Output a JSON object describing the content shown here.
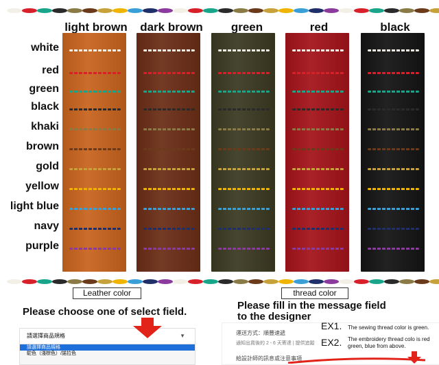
{
  "leather_colors": [
    {
      "name": "light brown",
      "color": "#c8641e"
    },
    {
      "name": "dark brown",
      "color": "#6b2e17"
    },
    {
      "name": "green",
      "color": "#3b3a22"
    },
    {
      "name": "red",
      "color": "#a3141a"
    },
    {
      "name": "black",
      "color": "#141414"
    }
  ],
  "thread_colors": [
    {
      "name": "white",
      "color": "#f2efe6"
    },
    {
      "name": "red",
      "color": "#d8202a"
    },
    {
      "name": "green",
      "color": "#18a58a"
    },
    {
      "name": "black",
      "color": "#2a2a2a"
    },
    {
      "name": "khaki",
      "color": "#8a7a45"
    },
    {
      "name": "brown",
      "color": "#6b3a1a"
    },
    {
      "name": "gold",
      "color": "#c7a23a"
    },
    {
      "name": "yellow",
      "color": "#f0b400"
    },
    {
      "name": "light blue",
      "color": "#3a9fd6"
    },
    {
      "name": "navy",
      "color": "#1f2f6a"
    },
    {
      "name": "purple",
      "color": "#8b3a9e"
    }
  ],
  "captions": {
    "leather": "Leather color",
    "thread": "thread color"
  },
  "headings": {
    "choose": "Please choose one of select field.",
    "fill_line1": "Please fill in the message field",
    "fill_line2": "to the designer"
  },
  "select": {
    "current": "請選擇商品規格",
    "options": [
      "請選擇商品規格",
      "駝色（淺棕色）/諾拉色"
    ]
  },
  "message_form": {
    "shipping": "運送方式：順豐速遞",
    "notice": "通知出貨後的 2 - 6 天寄達 | 提供追蹤",
    "designer_note": "給設計師的訊息或注意事項"
  },
  "examples": [
    {
      "label": "EX1.",
      "text": "The sewing thread color is green."
    },
    {
      "label": "EX2.",
      "text": "The embroidery thread colo is red green, blue from above."
    }
  ]
}
